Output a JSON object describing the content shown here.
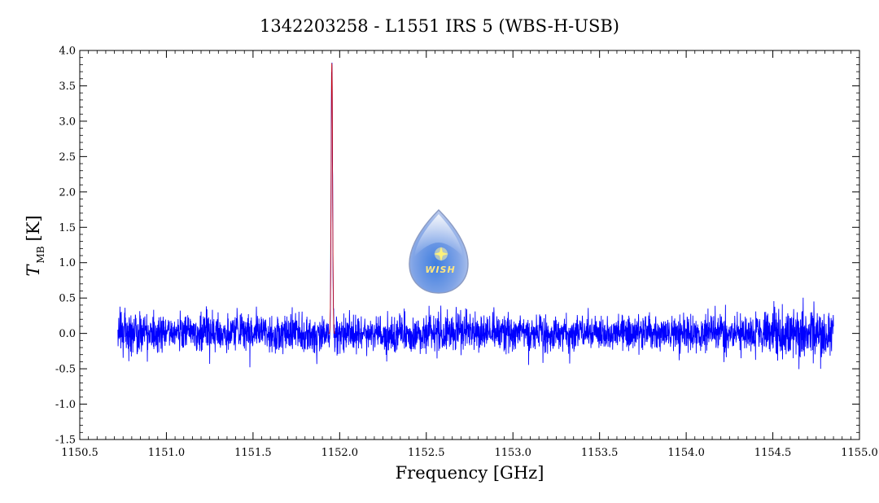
{
  "chart_data": {
    "type": "line",
    "title": "1342203258 - L1551 IRS 5 (WBS-H-USB)",
    "xlabel": "Frequency [GHz]",
    "ylabel_main": "T",
    "ylabel_sub": "MB",
    "ylabel_unit": "[K]",
    "xlim": [
      1150.5,
      1155.0
    ],
    "ylim": [
      -1.5,
      4.0
    ],
    "x_ticks": [
      1150.5,
      1151.0,
      1151.5,
      1152.0,
      1152.5,
      1153.0,
      1153.5,
      1154.0,
      1154.5,
      1155.0
    ],
    "x_tick_labels": [
      "1150.5",
      "1151.0",
      "1151.5",
      "1152.0",
      "1152.5",
      "1153.0",
      "1153.5",
      "1154.0",
      "1154.5",
      "1155.0"
    ],
    "y_ticks": [
      -1.5,
      -1.0,
      -0.5,
      0.0,
      0.5,
      1.0,
      1.5,
      2.0,
      2.5,
      3.0,
      3.5,
      4.0
    ],
    "y_tick_labels": [
      "-1.5",
      "-1.0",
      "-0.5",
      "0.0",
      "0.5",
      "1.0",
      "1.5",
      "2.0",
      "2.5",
      "3.0",
      "3.5",
      "4.0"
    ],
    "grid": false,
    "series": [
      {
        "color": "#0000ff",
        "x_start": 1150.72,
        "x_end": 1154.85,
        "noise_rms": 0.13,
        "lines": [
          {
            "center": 1151.955,
            "peak": 3.85,
            "width": 0.004
          }
        ]
      }
    ],
    "fit_line_color": "#cc0000"
  },
  "logo": {
    "text": "WISH",
    "colors": {
      "outer": "#aab8dd",
      "inner": "#6c8fd6",
      "star": "#fff27a"
    }
  }
}
